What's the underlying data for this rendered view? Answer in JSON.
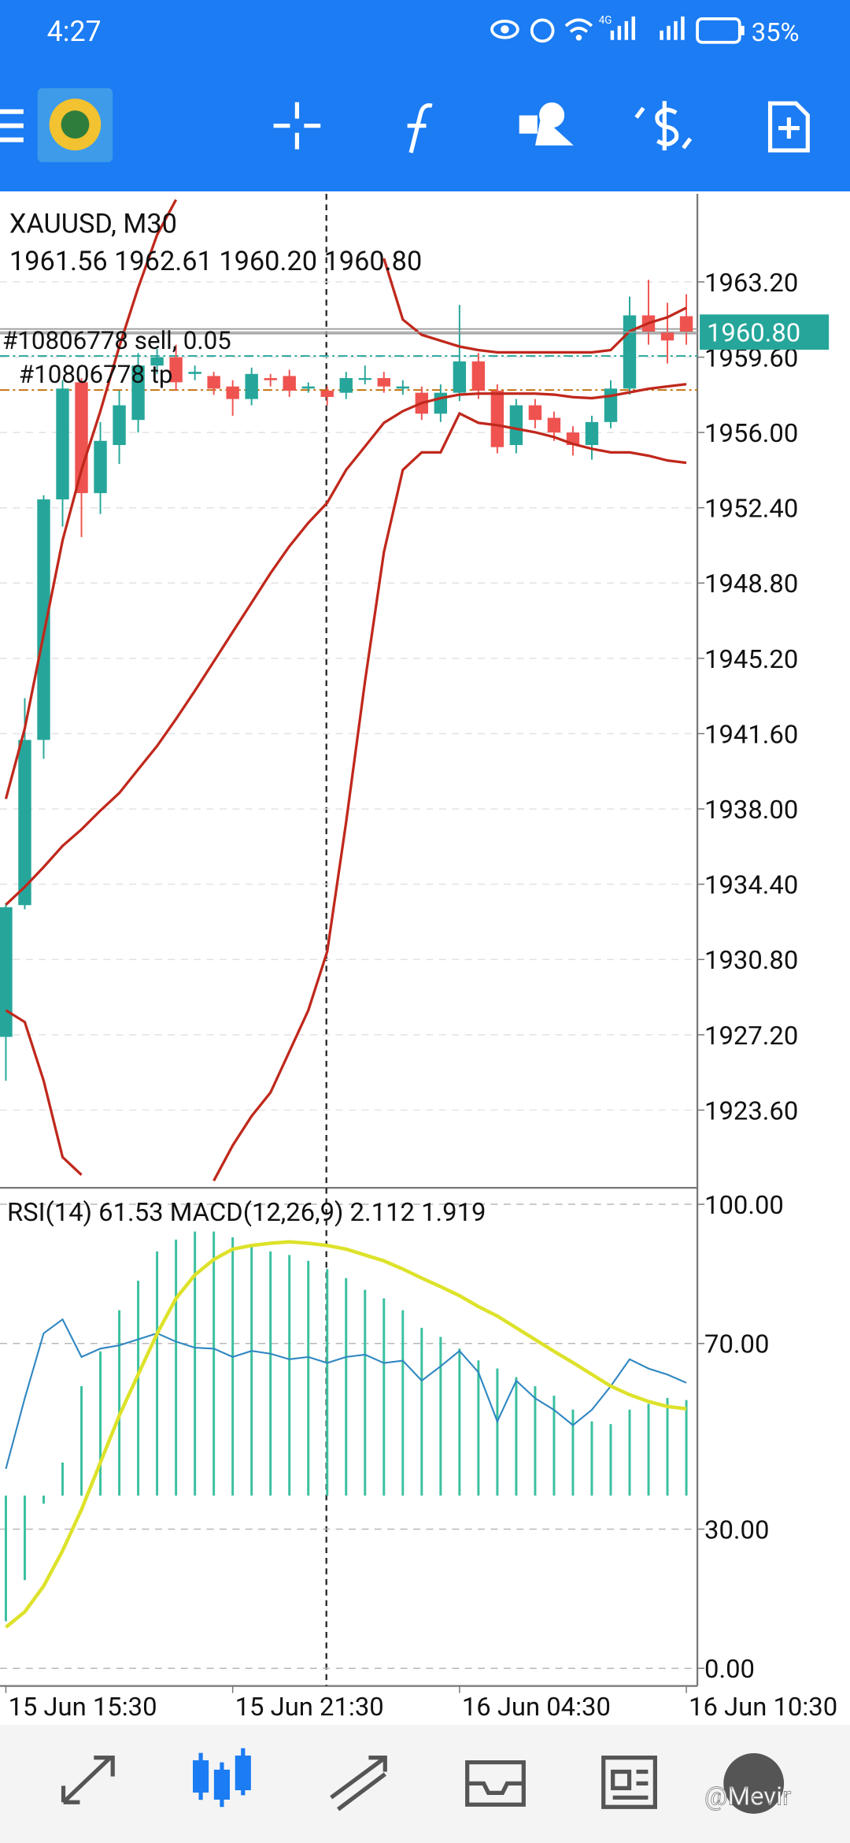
{
  "status_bar": {
    "time": "4:27",
    "battery": "35%",
    "network": "4G"
  },
  "chart_data": [
    {
      "type": "candlestick",
      "title": "XAUUSD, M30",
      "subtitle": "1961.56 1962.61 1960.20 1960.80",
      "up_color": "#26a69a",
      "down_color": "#ef5350",
      "open": [
        1927.1,
        1933.4,
        1941.3,
        1952.8,
        1958.4,
        1953.1,
        1955.4,
        1956.6,
        1959.2,
        1959.6,
        1958.8,
        1958.7,
        1958.2,
        1957.6,
        1958.6,
        1958.7,
        1958.1,
        1958.0,
        1957.9,
        1958.6,
        1958.6,
        1958.1,
        1957.9,
        1956.9,
        1957.9,
        1959.4,
        1958.0,
        1955.4,
        1957.3,
        1956.7,
        1956.0,
        1955.4,
        1956.5,
        1958.1,
        1961.6,
        1960.8,
        1961.56
      ],
      "high": [
        1933.5,
        1943.3,
        1953.0,
        1958.5,
        1958.6,
        1956.5,
        1958.0,
        1959.8,
        1960.0,
        1960.2,
        1959.2,
        1958.9,
        1958.5,
        1959.1,
        1958.8,
        1959.0,
        1958.4,
        1958.2,
        1958.9,
        1959.2,
        1958.9,
        1958.5,
        1958.2,
        1958.3,
        1962.1,
        1959.8,
        1958.3,
        1957.6,
        1957.6,
        1957.0,
        1956.3,
        1956.8,
        1958.5,
        1962.5,
        1963.3,
        1962.2,
        1962.61
      ],
      "low": [
        1925.0,
        1933.2,
        1940.4,
        1951.5,
        1951.0,
        1952.1,
        1954.5,
        1956.0,
        1958.8,
        1958.0,
        1958.5,
        1957.8,
        1956.8,
        1957.3,
        1958.2,
        1957.7,
        1957.9,
        1957.3,
        1957.6,
        1958.3,
        1957.9,
        1957.8,
        1956.6,
        1956.5,
        1957.5,
        1957.6,
        1955.0,
        1955.0,
        1956.2,
        1955.6,
        1954.9,
        1954.7,
        1956.2,
        1957.8,
        1960.2,
        1959.3,
        1960.2
      ],
      "close": [
        1933.3,
        1941.3,
        1952.8,
        1958.1,
        1953.1,
        1955.6,
        1957.3,
        1959.2,
        1959.6,
        1958.4,
        1958.9,
        1958.1,
        1957.6,
        1958.8,
        1958.5,
        1958.0,
        1958.2,
        1957.7,
        1958.6,
        1958.6,
        1958.2,
        1958.2,
        1956.9,
        1957.9,
        1959.4,
        1958.0,
        1955.3,
        1957.3,
        1956.6,
        1956.0,
        1955.4,
        1956.5,
        1958.1,
        1961.6,
        1960.8,
        1960.4,
        1960.8
      ],
      "bands": {
        "color": "#c0281c",
        "upper": [
          1938.48,
          1941.85,
          1946.35,
          1950.84,
          1954.21,
          1957.02,
          1960.11,
          1962.92,
          1965.45,
          1967.13,
          null,
          null,
          null,
          null,
          null,
          null,
          null,
          null,
          null,
          null,
          1964.32,
          1961.4,
          1960.67,
          1960.39,
          1960.11,
          1959.94,
          1959.83,
          1959.83,
          1959.83,
          1959.83,
          1959.83,
          1959.83,
          1959.94,
          1960.84,
          1961.23,
          1961.51,
          1961.96
        ],
        "middle": [
          1933.42,
          1934.27,
          1935.22,
          1936.23,
          1937.02,
          1937.92,
          1938.76,
          1939.89,
          1941.01,
          1942.3,
          1943.65,
          1945.05,
          1946.46,
          1947.86,
          1949.27,
          1950.56,
          1951.68,
          1952.64,
          1954.21,
          1955.33,
          1956.46,
          1957.02,
          1957.41,
          1957.64,
          1957.81,
          1957.86,
          1957.86,
          1957.86,
          1957.86,
          1957.81,
          1957.69,
          1957.64,
          1957.75,
          1957.92,
          1958.09,
          1958.2,
          1958.31
        ],
        "lower": [
          1928.37,
          1927.81,
          1925.0,
          1921.35,
          1920.5,
          null,
          null,
          null,
          null,
          null,
          null,
          1920.22,
          1921.91,
          1923.31,
          1924.44,
          1926.4,
          1928.37,
          1931.18,
          1937.36,
          1944.1,
          1950.28,
          1954.21,
          1955.05,
          1955.05,
          1956.91,
          1956.46,
          1956.35,
          1956.18,
          1956.01,
          1955.78,
          1955.45,
          1955.22,
          1955.05,
          1955.05,
          1954.89,
          1954.66,
          1954.55
        ]
      },
      "orders": [
        {
          "label": "#10806778 sell, 0.05",
          "value": 1960.95,
          "color": "#9e9e9e"
        },
        {
          "label": "#10806778 tp",
          "value": 1958.03,
          "color": "#c06a00"
        }
      ],
      "ask_line": {
        "value": 1959.66,
        "color": "#26a69a"
      },
      "current_price": {
        "value": 1960.8,
        "label": "1960.80",
        "color": "#26a69a"
      },
      "ylim": [
        1919.94,
        1967.41
      ],
      "yticks": [
        {
          "value": 1963.2,
          "label": "1963.20"
        },
        {
          "value": 1959.6,
          "label": "1959.60"
        },
        {
          "value": 1956,
          "label": "1956.00"
        },
        {
          "value": 1952.4,
          "label": "1952.40"
        },
        {
          "value": 1948.8,
          "label": "1948.80"
        },
        {
          "value": 1945.2,
          "label": "1945.20"
        },
        {
          "value": 1941.6,
          "label": "1941.60"
        },
        {
          "value": 1938,
          "label": "1938.00"
        },
        {
          "value": 1934.4,
          "label": "1934.40"
        },
        {
          "value": 1930.8,
          "label": "1930.80"
        },
        {
          "value": 1927.2,
          "label": "1927.20"
        },
        {
          "value": 1923.6,
          "label": "1923.60"
        }
      ],
      "grid": true
    },
    {
      "type": "indicator",
      "title": "RSI(14) 61.53 MACD(12,26,9) 2.112 1.919",
      "categories": [
        "15 Jun 15:30",
        null,
        null,
        null,
        null,
        null,
        null,
        null,
        null,
        null,
        null,
        null,
        "15 Jun 21:30",
        null,
        null,
        null,
        null,
        null,
        null,
        null,
        null,
        null,
        null,
        null,
        "16 Jun 04:30",
        null,
        null,
        null,
        null,
        null,
        null,
        null,
        null,
        null,
        null,
        null,
        "16 Jun 10:30"
      ],
      "rsi": {
        "color": "#2e86c1",
        "values": [
          43.0,
          58.2,
          72.2,
          75.2,
          67.1,
          68.9,
          69.6,
          70.9,
          72.2,
          70.4,
          69.1,
          68.9,
          67.1,
          68.4,
          67.8,
          66.6,
          67.1,
          65.8,
          67.1,
          67.6,
          65.8,
          66.3,
          62.0,
          65.1,
          68.4,
          63.8,
          53.2,
          62.0,
          58.2,
          55.7,
          52.4,
          55.7,
          60.8,
          66.6,
          64.6,
          63.3,
          61.53
        ]
      },
      "macd": {
        "color": "#3cc0a0",
        "axis": "y2",
        "values": [
          -2.78,
          -1.87,
          -0.18,
          0.73,
          2.42,
          3.19,
          4.1,
          4.75,
          5.4,
          5.66,
          5.84,
          5.84,
          5.71,
          5.53,
          5.4,
          5.32,
          5.19,
          5.01,
          4.81,
          4.55,
          4.36,
          4.1,
          3.71,
          3.51,
          3.25,
          2.99,
          2.81,
          2.62,
          2.42,
          2.21,
          1.9,
          1.64,
          1.58,
          1.9,
          2.03,
          2.16,
          2.112
        ]
      },
      "signal": {
        "color": "#dde22a",
        "axis": "y2",
        "values": [
          -2.91,
          -2.57,
          -2.0,
          -1.22,
          -0.31,
          0.73,
          1.77,
          2.68,
          3.58,
          4.36,
          4.88,
          5.22,
          5.45,
          5.53,
          5.58,
          5.61,
          5.58,
          5.53,
          5.45,
          5.32,
          5.19,
          5.01,
          4.81,
          4.62,
          4.42,
          4.18,
          3.97,
          3.71,
          3.45,
          3.19,
          2.94,
          2.68,
          2.42,
          2.23,
          2.08,
          1.97,
          1.919
        ]
      },
      "ylim": [
        -3.8,
        103.3
      ],
      "yticks": [
        {
          "value": 100,
          "label": "100.00"
        },
        {
          "value": 70,
          "label": "70.00"
        },
        {
          "value": 30,
          "label": "30.00"
        },
        {
          "value": 0,
          "label": "0.00"
        }
      ],
      "y2lim": [
        -4.21,
        6.78
      ],
      "grid": true
    }
  ],
  "watermark": "@Mevir"
}
